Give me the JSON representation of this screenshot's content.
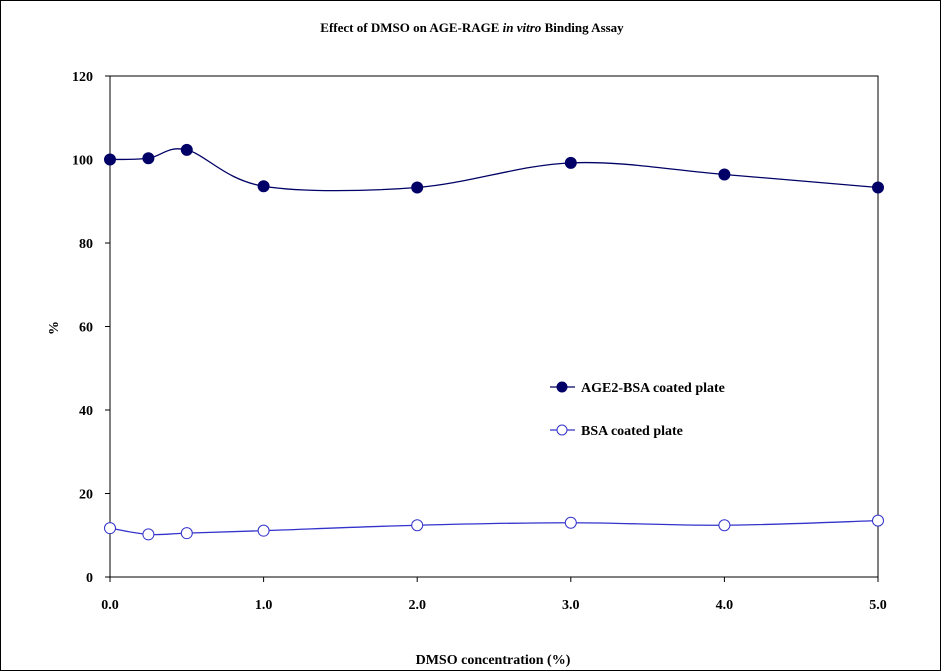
{
  "chart_data": {
    "type": "scatter",
    "title_parts": [
      "Effect of DMSO on AGE-RAGE ",
      "in vitro",
      " Binding Assay"
    ],
    "xlabel": "DMSO concentration (%)",
    "ylabel": "%",
    "xlim": [
      0,
      5
    ],
    "ylim": [
      0,
      120
    ],
    "x_ticks": [
      {
        "value": 0,
        "label": "0.0"
      },
      {
        "value": 1,
        "label": "1.0"
      },
      {
        "value": 2,
        "label": "2.0"
      },
      {
        "value": 3,
        "label": "3.0"
      },
      {
        "value": 4,
        "label": "4.0"
      },
      {
        "value": 5,
        "label": "5.0"
      }
    ],
    "y_ticks": [
      {
        "value": 0,
        "label": "0"
      },
      {
        "value": 20,
        "label": "20"
      },
      {
        "value": 40,
        "label": "40"
      },
      {
        "value": 60,
        "label": "60"
      },
      {
        "value": 80,
        "label": "80"
      },
      {
        "value": 100,
        "label": "100"
      },
      {
        "value": 120,
        "label": "120"
      }
    ],
    "grid": false,
    "legend_position": "right-middle",
    "series": [
      {
        "name": "AGE2-BSA coated plate",
        "marker": "filled-circle",
        "color": "#000066",
        "x": [
          0,
          0.25,
          0.5,
          1,
          2,
          3,
          4,
          5
        ],
        "y": [
          100,
          100.3,
          102.3,
          93.6,
          93.3,
          99.2,
          96.4,
          93.3
        ]
      },
      {
        "name": "BSA coated plate",
        "marker": "open-circle",
        "color": "#3333cc",
        "x": [
          0,
          0.25,
          0.5,
          1,
          2,
          3,
          4,
          5
        ],
        "y": [
          11.7,
          10.2,
          10.5,
          11.1,
          12.4,
          13.0,
          12.4,
          13.5
        ]
      }
    ]
  }
}
